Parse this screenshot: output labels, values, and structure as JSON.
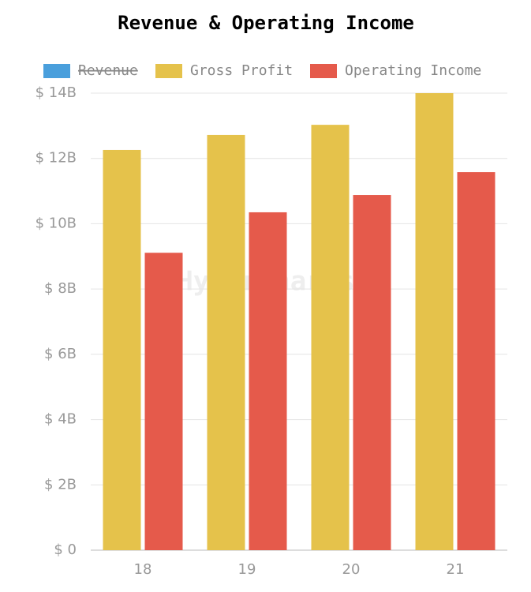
{
  "chart_data": {
    "type": "bar",
    "title": "Revenue & Operating Income",
    "watermark": "HyperCharts",
    "categories": [
      "18",
      "19",
      "20",
      "21"
    ],
    "series": [
      {
        "name": "Revenue",
        "color": "#4a9fdc",
        "hidden": true,
        "values": [
          null,
          null,
          null,
          null
        ]
      },
      {
        "name": "Gross Profit",
        "color": "#e5c24b",
        "values": [
          12.26,
          12.72,
          13.03,
          14.0
        ]
      },
      {
        "name": "Operating Income",
        "color": "#e55a4b",
        "values": [
          9.11,
          10.35,
          10.88,
          11.58
        ]
      }
    ],
    "ylim": [
      0,
      14
    ],
    "yticks": [
      {
        "value": 0,
        "label": "$ 0"
      },
      {
        "value": 2,
        "label": "$ 2B"
      },
      {
        "value": 4,
        "label": "$ 4B"
      },
      {
        "value": 6,
        "label": "$ 6B"
      },
      {
        "value": 8,
        "label": "$ 8B"
      },
      {
        "value": 10,
        "label": "$ 10B"
      },
      {
        "value": 12,
        "label": "$ 12B"
      },
      {
        "value": 14,
        "label": "$ 14B"
      }
    ],
    "grid": true
  }
}
